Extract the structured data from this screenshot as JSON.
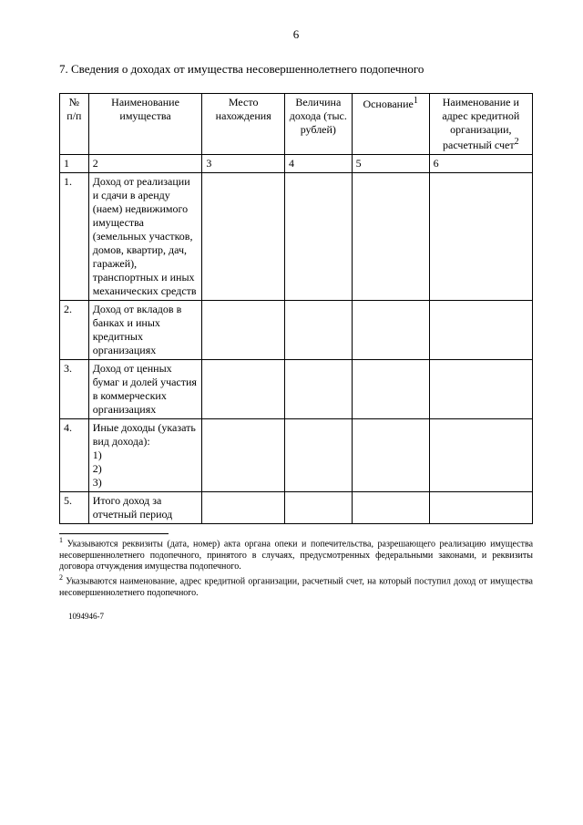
{
  "pageNumber": "6",
  "sectionTitle": "7. Сведения о доходах от имущества несовершеннолетнего подопечного",
  "table": {
    "columns": [
      "№ п/п",
      "Наименование имущества",
      "Место нахождения",
      "Величина дохода (тыс. рублей)",
      "Основание",
      "Наименование и адрес кредитной организации, расчетный счет"
    ],
    "sup1": "1",
    "sup2": "2",
    "indexRow": [
      "1",
      "2",
      "3",
      "4",
      "5",
      "6"
    ],
    "rows": [
      {
        "n": "1.",
        "name": "Доход от реализации и сдачи в аренду (наем) недвижимого имущества (земельных участков, домов, квартир, дач, гаражей), транспортных и иных механических средств"
      },
      {
        "n": "2.",
        "name": "Доход от вкладов в банках и иных кредитных организациях"
      },
      {
        "n": "3.",
        "name": "Доход от ценных бумаг и долей участия в коммерческих организациях"
      },
      {
        "n": "4.",
        "name": "Иные доходы (указать вид дохода):\n1)\n2)\n3)"
      },
      {
        "n": "5.",
        "name": "Итого доход за отчетный период"
      }
    ]
  },
  "footnote1": "Указываются реквизиты (дата, номер) акта органа опеки и попечительства, разрешающего реализацию имущества несовершеннолетнего подопечного, принятого в случаях, предусмотренных федеральными законами, и реквизиты договора отчуждения имущества подопечного.",
  "footnote2": "Указываются наименование, адрес кредитной организации, расчетный счет, на который поступил доход от имущества несовершеннолетнего подопечного.",
  "docId": "1094946-7"
}
